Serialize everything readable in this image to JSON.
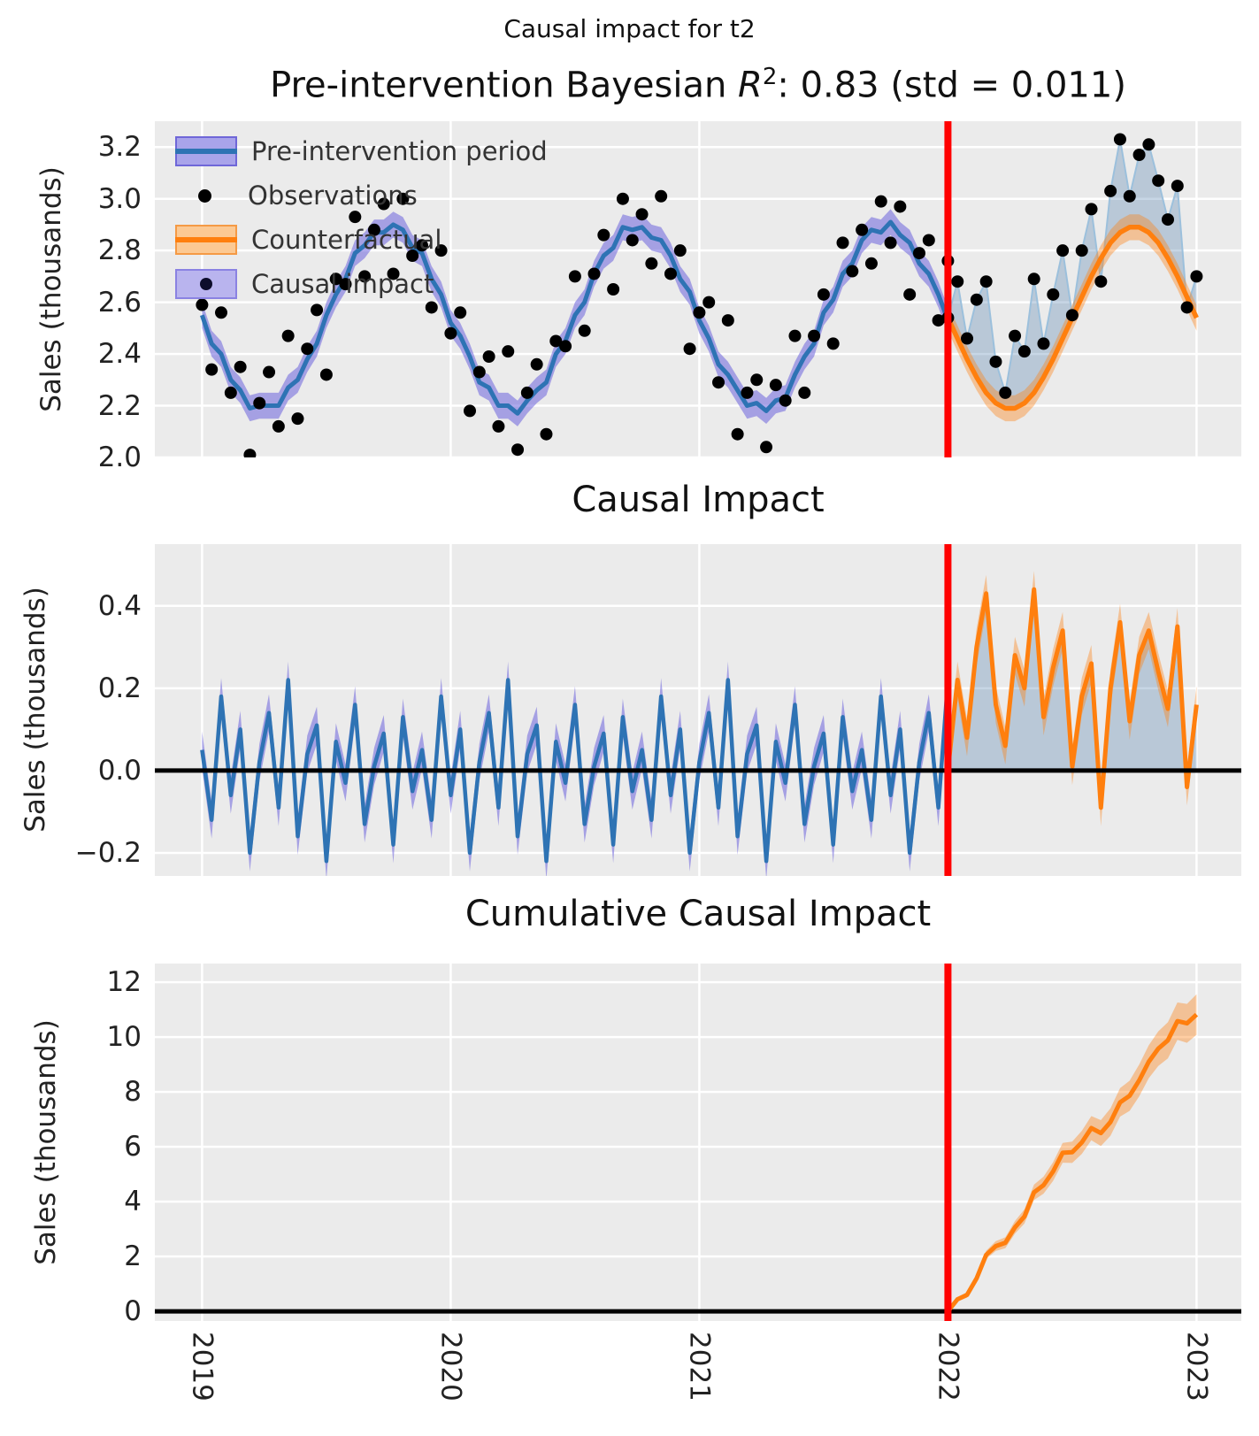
{
  "figure": {
    "suptitle": "Causal impact for t2",
    "panel1_title_prefix": "Pre-intervention Bayesian ",
    "panel1_title_r": "R",
    "panel1_title_exp": "2",
    "panel1_title_suffix": ": 0.83 (std = 0.011)",
    "panel2_title": "Causal Impact",
    "panel3_title": "Cumulative Causal Impact",
    "ylabel": "Sales (thousands)",
    "colors": {
      "axes_background": "#ebebeb",
      "grid": "#ffffff",
      "pre_line": "#2e73b4",
      "pre_band": "rgba(108,99,220,0.55)",
      "counterfactual_line": "#ff7f0e",
      "counterfactual_band": "rgba(255,127,14,0.38)",
      "causal_fill": "rgba(70,120,170,0.30)",
      "obs_thin_line": "#9cc0dc",
      "observations": "#000000",
      "intervention_line": "#ff0000",
      "zero_line": "#000000"
    }
  },
  "legend": {
    "items": [
      {
        "label": "Pre-intervention period",
        "marker": "blue-band"
      },
      {
        "label": "Observations",
        "marker": "black-dot"
      },
      {
        "label": "Counterfactual",
        "marker": "orange-band"
      },
      {
        "label": "Causal impact",
        "marker": "causal-patch"
      }
    ]
  },
  "chart_data": {
    "type": "line",
    "x_axis": {
      "xlim": [
        2018.81,
        2023.18
      ],
      "tick_values": [
        2019,
        2020,
        2021,
        2022,
        2023
      ],
      "tick_labels": [
        "2019",
        "2020",
        "2021",
        "2022",
        "2023"
      ]
    },
    "intervention_x": 2022,
    "x_start_pre": 2019.0,
    "x_start_post": 2022.0,
    "x_step_years": 0.038461,
    "panel1": {
      "ylabel": "Sales (thousands)",
      "ylim": [
        2.0,
        3.3
      ],
      "tick_values": [
        3.2,
        3.0,
        2.8,
        2.6,
        2.4,
        2.2,
        2.0
      ],
      "tick_labels": [
        "3.2",
        "3.0",
        "2.8",
        "2.6",
        "2.4",
        "2.2",
        "2.0"
      ],
      "pre_model_mean": [
        2.55,
        2.44,
        2.4,
        2.3,
        2.26,
        2.19,
        2.2,
        2.2,
        2.2,
        2.27,
        2.3,
        2.38,
        2.44,
        2.55,
        2.63,
        2.69,
        2.79,
        2.82,
        2.87,
        2.87,
        2.9,
        2.88,
        2.81,
        2.79,
        2.69,
        2.63,
        2.52,
        2.47,
        2.39,
        2.29,
        2.27,
        2.2,
        2.2,
        2.17,
        2.22,
        2.26,
        2.29,
        2.4,
        2.45,
        2.55,
        2.6,
        2.71,
        2.78,
        2.81,
        2.89,
        2.88,
        2.89,
        2.85,
        2.84,
        2.78,
        2.69,
        2.64,
        2.53,
        2.46,
        2.36,
        2.32,
        2.26,
        2.2,
        2.21,
        2.18,
        2.22,
        2.23,
        2.32,
        2.39,
        2.44,
        2.56,
        2.61,
        2.71,
        2.75,
        2.84,
        2.88,
        2.87,
        2.91,
        2.86,
        2.83,
        2.75,
        2.71,
        2.63,
        2.53
      ],
      "pre_hdi_halfwidth": 0.05,
      "observations_pre": [
        2.59,
        2.34,
        2.56,
        2.25,
        2.35,
        2.01,
        2.21,
        2.33,
        2.12,
        2.47,
        2.15,
        2.42,
        2.57,
        2.32,
        2.69,
        2.67,
        2.93,
        2.7,
        2.88,
        2.98,
        2.71,
        3.0,
        2.78,
        2.82,
        2.58,
        2.8,
        2.48,
        2.56,
        2.18,
        2.33,
        2.39,
        2.12,
        2.41,
        2.03,
        2.25,
        2.36,
        2.09,
        2.45,
        2.43,
        2.7,
        2.49,
        2.71,
        2.86,
        2.65,
        3.0,
        2.84,
        2.94,
        2.75,
        3.01,
        2.71,
        2.8,
        2.42,
        2.56,
        2.6,
        2.29,
        2.53,
        2.09,
        2.25,
        2.3,
        2.04,
        2.28,
        2.22,
        2.47,
        2.25,
        2.47,
        2.63,
        2.44,
        2.83,
        2.72,
        2.88,
        2.75,
        2.99,
        2.83,
        2.97,
        2.63,
        2.79,
        2.84,
        2.53,
        2.76
      ],
      "counterfactual": [
        2.54,
        2.46,
        2.38,
        2.31,
        2.25,
        2.21,
        2.19,
        2.19,
        2.21,
        2.25,
        2.31,
        2.38,
        2.46,
        2.54,
        2.62,
        2.7,
        2.77,
        2.83,
        2.87,
        2.89,
        2.89,
        2.87,
        2.83,
        2.77,
        2.7,
        2.62,
        2.54
      ],
      "counterfactual_hdi_halfwidth": 0.05,
      "observations_post": [
        2.54,
        2.68,
        2.46,
        2.61,
        2.68,
        2.37,
        2.25,
        2.47,
        2.41,
        2.69,
        2.44,
        2.63,
        2.8,
        2.55,
        2.8,
        2.96,
        2.68,
        3.03,
        3.23,
        3.01,
        3.17,
        3.21,
        3.07,
        2.92,
        3.05,
        2.58,
        2.7
      ]
    },
    "panel2": {
      "ylabel": "Sales (thousands)",
      "ylim": [
        -0.256,
        0.55
      ],
      "tick_values": [
        0.4,
        0.2,
        0.0,
        -0.2
      ],
      "tick_labels": [
        "0.4",
        "0.2",
        "0.0",
        "−0.2"
      ],
      "impact_pre": [
        0.05,
        -0.12,
        0.18,
        -0.06,
        0.1,
        -0.2,
        0.02,
        0.14,
        -0.09,
        0.22,
        -0.16,
        0.04,
        0.11,
        -0.22,
        0.07,
        -0.03,
        0.16,
        -0.13,
        0.01,
        0.09,
        -0.18,
        0.13,
        -0.05,
        0.05,
        -0.12,
        0.18,
        -0.06,
        0.1,
        -0.2,
        0.02,
        0.14,
        -0.09,
        0.22,
        -0.16,
        0.04,
        0.11,
        -0.22,
        0.07,
        -0.03,
        0.16,
        -0.13,
        0.01,
        0.09,
        -0.18,
        0.13,
        -0.05,
        0.05,
        -0.12,
        0.18,
        -0.06,
        0.1,
        -0.2,
        0.02,
        0.14,
        -0.09,
        0.22,
        -0.16,
        0.04,
        0.11,
        -0.22,
        0.07,
        -0.03,
        0.16,
        -0.13,
        0.01,
        0.09,
        -0.18,
        0.13,
        -0.05,
        0.05,
        -0.12,
        0.18,
        -0.06,
        0.1,
        -0.2,
        0.02,
        0.14,
        -0.09,
        0.22
      ],
      "impact_pre_hdi_halfwidth": 0.045,
      "impact_post": [
        0.0,
        0.22,
        0.08,
        0.3,
        0.43,
        0.16,
        0.06,
        0.28,
        0.2,
        0.44,
        0.13,
        0.25,
        0.34,
        0.01,
        0.18,
        0.26,
        -0.09,
        0.2,
        0.36,
        0.12,
        0.28,
        0.34,
        0.24,
        0.15,
        0.35,
        -0.04,
        0.16
      ],
      "impact_post_hdi_halfwidth": 0.045,
      "zero_line": 0.0
    },
    "panel3": {
      "ylabel": "Sales (thousands)",
      "ylim": [
        -0.35,
        12.68
      ],
      "tick_values": [
        12,
        10,
        8,
        6,
        4,
        2,
        0
      ],
      "tick_labels": [
        "12",
        "10",
        "8",
        "6",
        "4",
        "2",
        "0"
      ],
      "cumulative": [
        0.0,
        0.44,
        0.6,
        1.2,
        2.06,
        2.38,
        2.5,
        3.06,
        3.46,
        4.34,
        4.6,
        5.1,
        5.78,
        5.8,
        6.16,
        6.68,
        6.5,
        6.9,
        7.62,
        7.86,
        8.42,
        9.1,
        9.58,
        9.88,
        10.58,
        10.5,
        10.82
      ],
      "cumulative_hdi_halfwidth": [
        0.04,
        0.07,
        0.1,
        0.12,
        0.15,
        0.18,
        0.2,
        0.23,
        0.26,
        0.28,
        0.31,
        0.34,
        0.36,
        0.39,
        0.42,
        0.44,
        0.47,
        0.5,
        0.52,
        0.55,
        0.58,
        0.6,
        0.63,
        0.66,
        0.68,
        0.71,
        0.74
      ],
      "zero_line": 0.0
    }
  }
}
